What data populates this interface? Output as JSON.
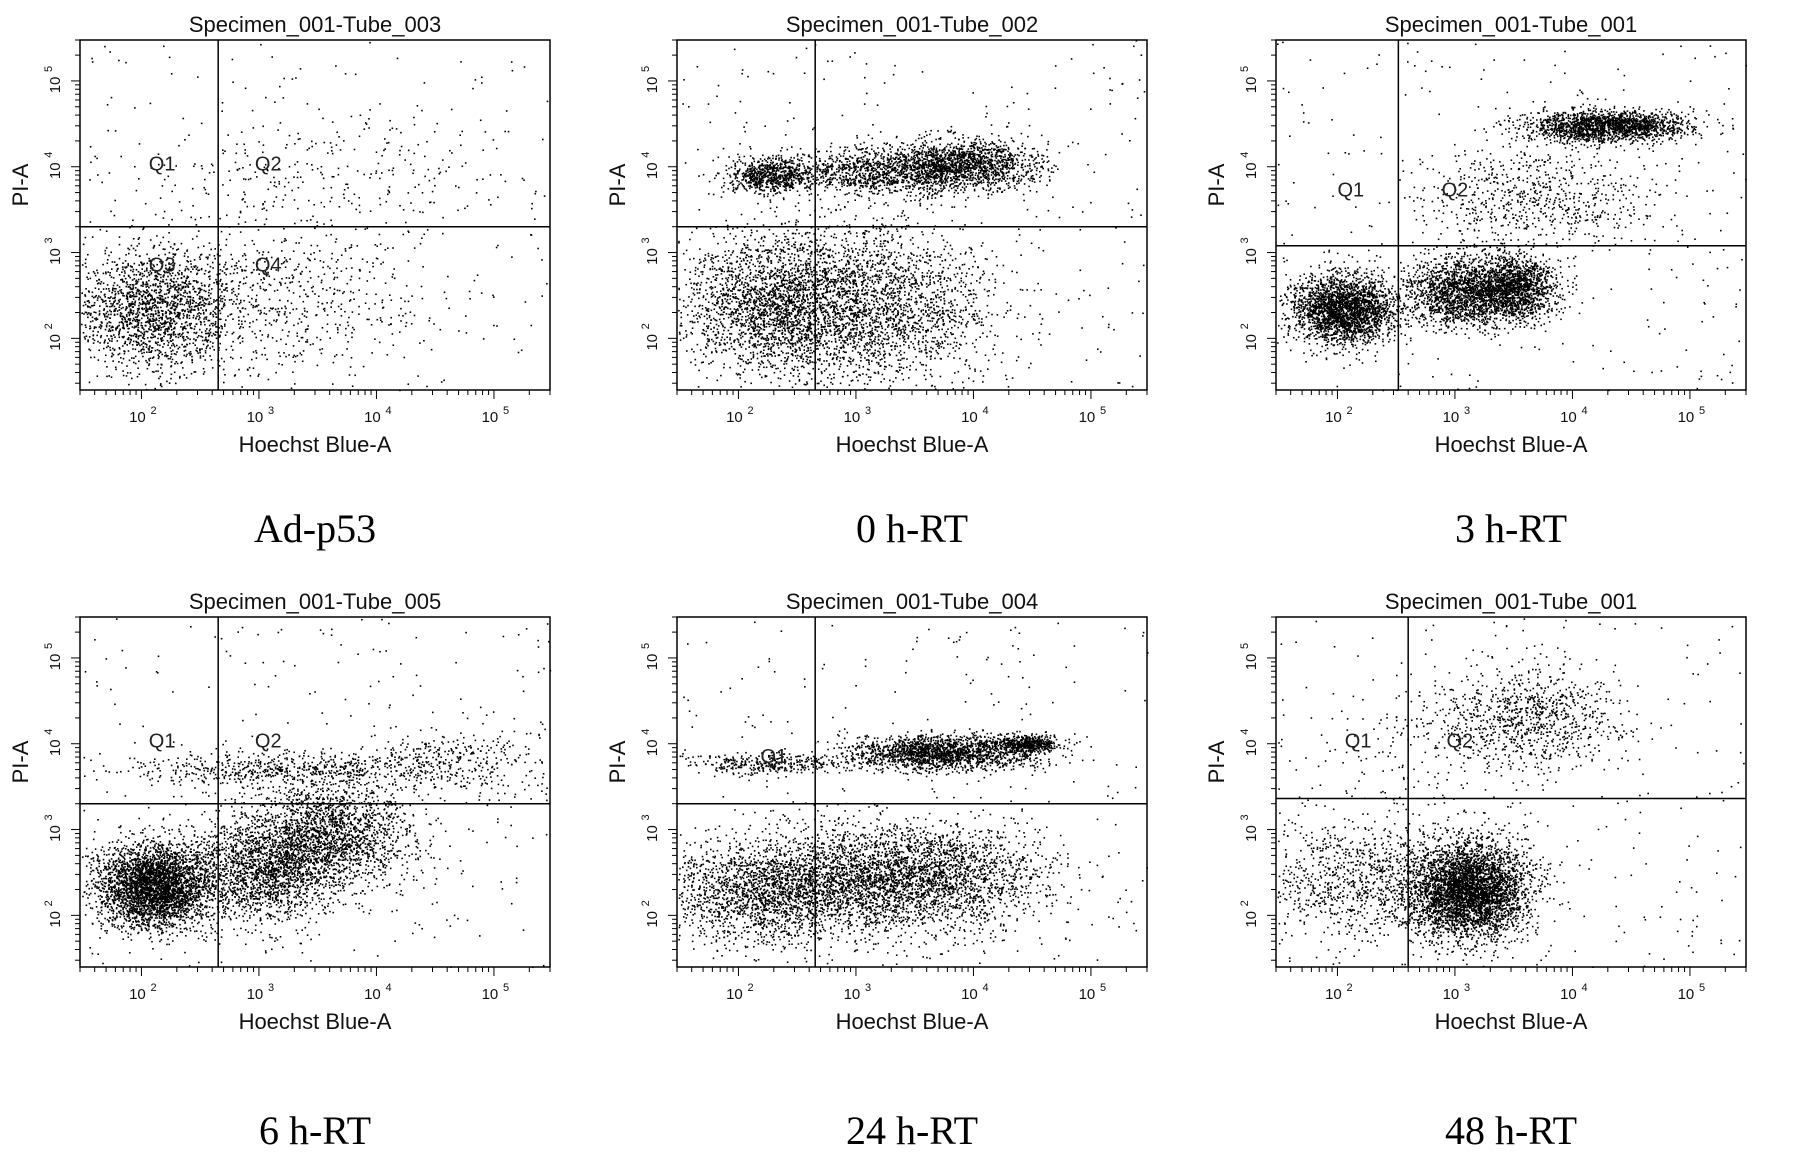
{
  "figure": {
    "background": "#ffffff",
    "dot_color": "#000000",
    "line_color": "#000000"
  },
  "chart_data": [
    {
      "type": "scatter",
      "title": "Specimen_001-Tube_003",
      "caption": "Ad-p53",
      "xlabel": "Hoechst Blue-A",
      "ylabel": "PI-A",
      "x_scale": "log",
      "y_scale": "log",
      "xlim": [
        30,
        300000
      ],
      "ylim": [
        25,
        300000
      ],
      "x_ticks": [
        "2",
        "3",
        "4",
        "5"
      ],
      "y_ticks": [
        "2",
        "3",
        "4",
        "5"
      ],
      "x_gate": 450,
      "y_gate": 2000,
      "quadrant_labels": [
        {
          "text": "Q1",
          "x": 150,
          "y": 9000
        },
        {
          "text": "Q2",
          "x": 1200,
          "y": 9000
        },
        {
          "text": "Q3",
          "x": 150,
          "y": 600
        },
        {
          "text": "Q4",
          "x": 1200,
          "y": 600
        }
      ],
      "clusters": [
        {
          "x": 130,
          "y": 220,
          "sx": 0.35,
          "sy": 0.35,
          "n": 1800
        },
        {
          "x": 1500,
          "y": 300,
          "sx": 0.65,
          "sy": 0.45,
          "n": 600
        },
        {
          "x": 3000,
          "y": 8000,
          "sx": 0.9,
          "sy": 0.35,
          "n": 250
        }
      ]
    },
    {
      "type": "scatter",
      "title": "Specimen_001-Tube_002",
      "caption": "0 h-RT",
      "xlabel": "Hoechst Blue-A",
      "ylabel": "PI-A",
      "x_scale": "log",
      "y_scale": "log",
      "xlim": [
        30,
        300000
      ],
      "ylim": [
        25,
        300000
      ],
      "x_ticks": [
        "2",
        "3",
        "4",
        "5"
      ],
      "y_ticks": [
        "2",
        "3",
        "4",
        "5"
      ],
      "x_gate": 450,
      "y_gate": 2000,
      "quadrant_labels": [],
      "clusters": [
        {
          "x": 180,
          "y": 8000,
          "sx": 0.18,
          "sy": 0.1,
          "n": 700
        },
        {
          "x": 2000,
          "y": 9000,
          "sx": 0.45,
          "sy": 0.14,
          "n": 1400
        },
        {
          "x": 9000,
          "y": 11000,
          "sx": 0.3,
          "sy": 0.14,
          "n": 1200
        },
        {
          "x": 200,
          "y": 250,
          "sx": 0.4,
          "sy": 0.4,
          "n": 2200
        },
        {
          "x": 1500,
          "y": 250,
          "sx": 0.5,
          "sy": 0.45,
          "n": 2200
        }
      ]
    },
    {
      "type": "scatter",
      "title": "Specimen_001-Tube_001",
      "caption": "3 h-RT",
      "xlabel": "Hoechst Blue-A",
      "ylabel": "PI-A",
      "x_scale": "log",
      "y_scale": "log",
      "xlim": [
        30,
        300000
      ],
      "ylim": [
        25,
        300000
      ],
      "x_ticks": [
        "2",
        "3",
        "4",
        "5"
      ],
      "y_ticks": [
        "2",
        "3",
        "4",
        "5"
      ],
      "x_gate": 330,
      "y_gate": 1200,
      "quadrant_labels": [
        {
          "text": "Q1",
          "x": 130,
          "y": 4500
        },
        {
          "text": "Q2",
          "x": 1000,
          "y": 4500
        }
      ],
      "clusters": [
        {
          "x": 110,
          "y": 220,
          "sx": 0.22,
          "sy": 0.2,
          "n": 2500
        },
        {
          "x": 1000,
          "y": 350,
          "sx": 0.22,
          "sy": 0.2,
          "n": 1400
        },
        {
          "x": 3000,
          "y": 380,
          "sx": 0.18,
          "sy": 0.2,
          "n": 1700
        },
        {
          "x": 20000,
          "y": 30000,
          "sx": 0.35,
          "sy": 0.09,
          "n": 1800
        },
        {
          "x": 5000,
          "y": 4500,
          "sx": 0.5,
          "sy": 0.3,
          "n": 700
        }
      ]
    },
    {
      "type": "scatter",
      "title": "Specimen_001-Tube_005",
      "caption": "6 h-RT",
      "xlabel": "Hoechst Blue-A",
      "ylabel": "PI-A",
      "x_scale": "log",
      "y_scale": "log",
      "xlim": [
        30,
        300000
      ],
      "ylim": [
        25,
        300000
      ],
      "x_ticks": [
        "2",
        "3",
        "4",
        "5"
      ],
      "y_ticks": [
        "2",
        "3",
        "4",
        "5"
      ],
      "x_gate": 450,
      "y_gate": 2000,
      "quadrant_labels": [
        {
          "text": "Q1",
          "x": 150,
          "y": 9000
        },
        {
          "text": "Q2",
          "x": 1200,
          "y": 9000
        }
      ],
      "clusters": [
        {
          "x": 130,
          "y": 220,
          "sx": 0.25,
          "sy": 0.25,
          "n": 3500
        },
        {
          "x": 1200,
          "y": 350,
          "sx": 0.3,
          "sy": 0.3,
          "n": 1800
        },
        {
          "x": 4000,
          "y": 900,
          "sx": 0.35,
          "sy": 0.3,
          "n": 1800
        },
        {
          "x": 1500,
          "y": 5000,
          "sx": 0.6,
          "sy": 0.1,
          "n": 600
        },
        {
          "x": 40000,
          "y": 6000,
          "sx": 0.45,
          "sy": 0.2,
          "n": 400
        }
      ]
    },
    {
      "type": "scatter",
      "title": "Specimen_001-Tube_004",
      "caption": "24 h-RT",
      "xlabel": "Hoechst Blue-A",
      "ylabel": "PI-A",
      "x_scale": "log",
      "y_scale": "log",
      "xlim": [
        30,
        300000
      ],
      "ylim": [
        25,
        300000
      ],
      "x_ticks": [
        "2",
        "3",
        "4",
        "5"
      ],
      "y_ticks": [
        "2",
        "3",
        "4",
        "5"
      ],
      "x_gate": 450,
      "y_gate": 2000,
      "quadrant_labels": [
        {
          "text": "Q1",
          "x": 200,
          "y": 6000
        }
      ],
      "clusters": [
        {
          "x": 180,
          "y": 6000,
          "sx": 0.35,
          "sy": 0.06,
          "n": 350
        },
        {
          "x": 5000,
          "y": 8000,
          "sx": 0.4,
          "sy": 0.1,
          "n": 1800
        },
        {
          "x": 28000,
          "y": 10000,
          "sx": 0.15,
          "sy": 0.06,
          "n": 500
        },
        {
          "x": 200,
          "y": 200,
          "sx": 0.5,
          "sy": 0.3,
          "n": 2200
        },
        {
          "x": 3000,
          "y": 280,
          "sx": 0.55,
          "sy": 0.3,
          "n": 3000
        }
      ]
    },
    {
      "type": "scatter",
      "title": "Specimen_001-Tube_001",
      "caption": "48 h-RT",
      "xlabel": "Hoechst Blue-A",
      "ylabel": "PI-A",
      "x_scale": "log",
      "y_scale": "log",
      "xlim": [
        30,
        300000
      ],
      "ylim": [
        25,
        300000
      ],
      "x_ticks": [
        "2",
        "3",
        "4",
        "5"
      ],
      "y_ticks": [
        "2",
        "3",
        "4",
        "5"
      ],
      "x_gate": 400,
      "y_gate": 2300,
      "quadrant_labels": [
        {
          "text": "Q1",
          "x": 150,
          "y": 9000
        },
        {
          "text": "Q2",
          "x": 1100,
          "y": 9000
        }
      ],
      "clusters": [
        {
          "x": 1300,
          "y": 200,
          "sx": 0.25,
          "sy": 0.28,
          "n": 4000
        },
        {
          "x": 150,
          "y": 250,
          "sx": 0.45,
          "sy": 0.35,
          "n": 1000
        },
        {
          "x": 4000,
          "y": 20000,
          "sx": 0.4,
          "sy": 0.3,
          "n": 900
        },
        {
          "x": 500,
          "y": 8000,
          "sx": 0.6,
          "sy": 0.4,
          "n": 150
        }
      ]
    }
  ]
}
